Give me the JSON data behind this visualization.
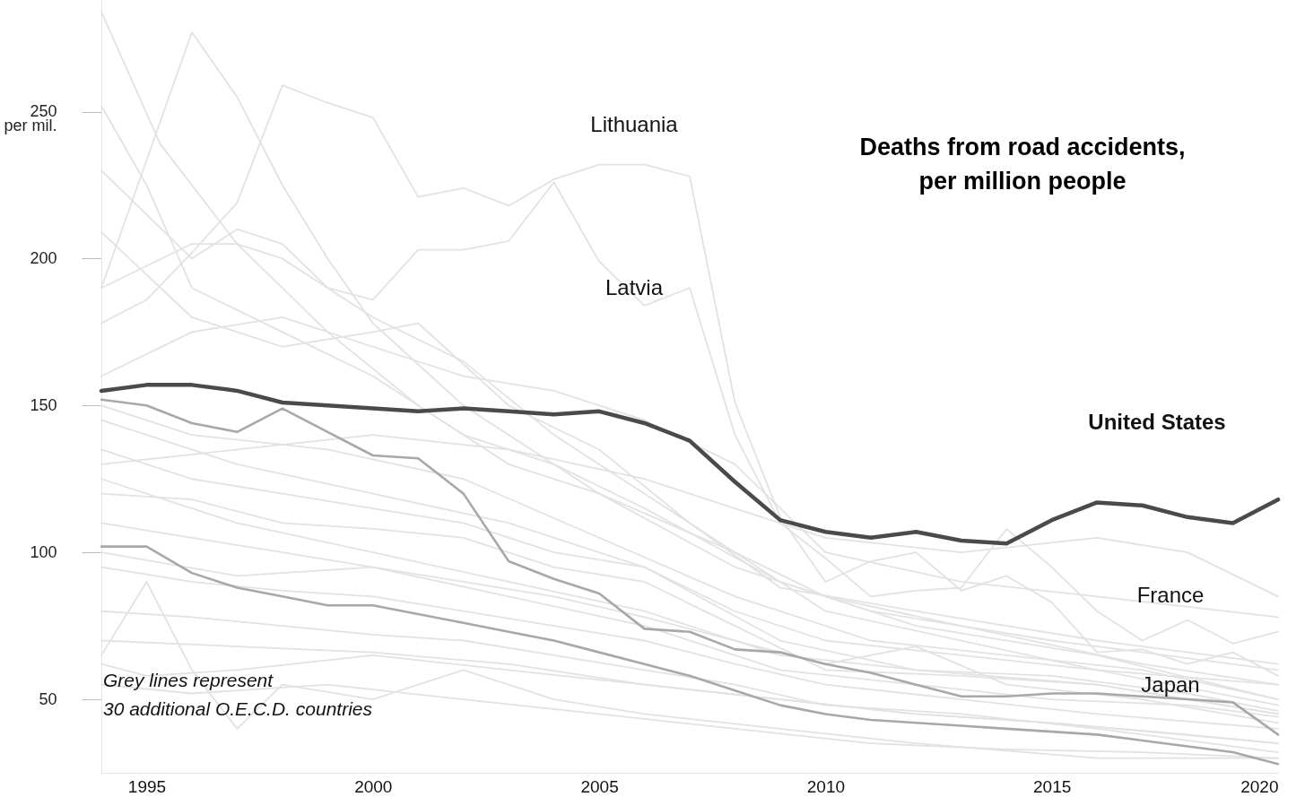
{
  "chart_data": {
    "type": "line",
    "title": "Deaths from road accidents,\nper million people",
    "xlim": [
      1994,
      2020
    ],
    "xticks": [
      1995,
      2000,
      2005,
      2010,
      2015,
      2020
    ],
    "ylim": [
      25,
      288
    ],
    "yticks": [
      50,
      100,
      150,
      200,
      {
        "value": 250,
        "label": "250\nper mil."
      }
    ],
    "annotations": [
      "Lithuania",
      "Latvia",
      "United States",
      "France",
      "Japan",
      "Grey lines represent\n30 additional O.E.C.D. countries"
    ],
    "series": [
      {
        "color": "#e2e2e2",
        "x": [
          1994,
          1995.3,
          1997,
          1999,
          2001,
          2003,
          2005,
          2008,
          2010,
          2013,
          2016,
          2020
        ],
        "values": [
          284,
          239,
          205,
          175,
          150,
          130,
          120,
          100,
          80,
          70,
          60,
          55
        ]
      },
      {
        "color": "#e2e2e2",
        "x": [
          1994,
          1996,
          1997,
          1998,
          1999,
          2000,
          2002,
          2005,
          2008,
          2011,
          2015,
          2020
        ],
        "values": [
          190,
          277,
          255,
          225,
          200,
          178,
          150,
          120,
          95,
          80,
          70,
          60
        ]
      },
      {
        "color": "#e2e2e2",
        "x": [
          1994,
          1995,
          1996,
          1998,
          2000,
          2002,
          2004,
          2006,
          2009,
          2012,
          2016,
          2020
        ],
        "values": [
          252,
          225,
          190,
          175,
          160,
          140,
          130,
          115,
          90,
          75,
          65,
          50
        ]
      },
      {
        "color": "#e2e2e2",
        "x": [
          1994,
          1996,
          1997,
          1998,
          2000,
          2002,
          2004,
          2006,
          2008,
          2010,
          2013,
          2017,
          2020
        ],
        "values": [
          190,
          205,
          205,
          200,
          180,
          165,
          140,
          120,
          100,
          85,
          75,
          62,
          55
        ]
      },
      {
        "color": "#e2e2e2",
        "x": [
          1994,
          1996,
          1998,
          2000,
          2001,
          2003,
          2005,
          2007,
          2009,
          2012,
          2016,
          2020
        ],
        "values": [
          209,
          180,
          170,
          175,
          178,
          150,
          135,
          110,
          88,
          80,
          70,
          62
        ]
      },
      {
        "color": "#e2e2e2",
        "x": [
          1994,
          1996,
          1998,
          2000,
          2002,
          2004,
          2006,
          2008,
          2010,
          2013,
          2016,
          2020
        ],
        "values": [
          160,
          175,
          180,
          170,
          160,
          155,
          145,
          130,
          100,
          90,
          85,
          78
        ]
      },
      {
        "color": "#e2e2e2",
        "x": [
          1994,
          1997,
          2000,
          2003,
          2006,
          2008,
          2010,
          2013,
          2016,
          2018,
          2020
        ],
        "values": [
          130,
          135,
          140,
          135,
          125,
          115,
          105,
          100,
          105,
          100,
          85
        ]
      },
      {
        "color": "#e2e2e2",
        "x": [
          1994,
          1996,
          1998,
          2000,
          2002,
          2004,
          2006,
          2008,
          2010,
          2013,
          2016,
          2020
        ],
        "values": [
          135,
          125,
          120,
          115,
          110,
          100,
          95,
          80,
          70,
          65,
          60,
          48
        ]
      },
      {
        "color": "#e2e2e2",
        "x": [
          1994,
          1996,
          1998,
          2000,
          2002,
          2004,
          2006,
          2008,
          2010,
          2013,
          2016,
          2020
        ],
        "values": [
          120,
          118,
          110,
          108,
          105,
          95,
          90,
          75,
          60,
          58,
          55,
          45
        ]
      },
      {
        "color": "#e2e2e2",
        "x": [
          1994,
          1996,
          1998,
          2000,
          2002,
          2004,
          2006,
          2008,
          2010,
          2012,
          2014,
          2017,
          2020
        ],
        "values": [
          110,
          105,
          100,
          95,
          90,
          85,
          78,
          70,
          62,
          68,
          55,
          50,
          42
        ]
      },
      {
        "color": "#e2e2e2",
        "x": [
          1994,
          1996,
          1998,
          2000,
          2002,
          2004,
          2006,
          2008,
          2010,
          2013,
          2016,
          2020
        ],
        "values": [
          95,
          90,
          87,
          85,
          80,
          75,
          70,
          62,
          55,
          50,
          45,
          40
        ]
      },
      {
        "color": "#e2e2e2",
        "x": [
          1994,
          1995,
          1997,
          2000,
          2003,
          2006,
          2009,
          2012,
          2015,
          2020
        ],
        "values": [
          62,
          58,
          60,
          65,
          60,
          55,
          50,
          45,
          42,
          35
        ]
      },
      {
        "color": "#e2e2e2",
        "x": [
          1994,
          1995,
          1996,
          1997,
          1998,
          2000,
          2002,
          2004,
          2006,
          2009,
          2012,
          2016,
          2020
        ],
        "values": [
          65,
          90,
          60,
          40,
          55,
          50,
          60,
          50,
          45,
          40,
          35,
          30,
          30
        ]
      },
      {
        "color": "#e2e2e2",
        "x": [
          1994,
          1996,
          1998,
          2000,
          2002,
          2004,
          2006,
          2008,
          2010,
          2013,
          2016,
          2020
        ],
        "values": [
          80,
          78,
          75,
          72,
          70,
          65,
          60,
          55,
          48,
          45,
          40,
          32
        ]
      },
      {
        "color": "#e2e2e2",
        "x": [
          1994,
          1997,
          2000,
          2003,
          2006,
          2009,
          2012,
          2015,
          2018,
          2020
        ],
        "values": [
          70,
          68,
          66,
          62,
          55,
          50,
          45,
          42,
          38,
          35
        ]
      },
      {
        "color": "#e2e2e2",
        "x": [
          1994,
          1996,
          1999,
          2002,
          2005,
          2008,
          2011,
          2014,
          2017,
          2020
        ],
        "values": [
          55,
          52,
          55,
          50,
          45,
          40,
          35,
          33,
          32,
          30
        ]
      },
      {
        "color": "#e2e2e2",
        "x": [
          1994,
          1997,
          2000,
          2003,
          2006,
          2009,
          2012,
          2016,
          2020
        ],
        "values": [
          145,
          130,
          120,
          110,
          95,
          70,
          60,
          55,
          45
        ]
      },
      {
        "color": "#e2e2e2",
        "x": [
          1994,
          1996,
          1999,
          2002,
          2005,
          2008,
          2011,
          2014,
          2017,
          2020
        ],
        "values": [
          150,
          140,
          135,
          125,
          105,
          85,
          70,
          65,
          60,
          50
        ]
      },
      {
        "color": "#e2e2e2",
        "x": [
          1994,
          1997,
          2000,
          2003,
          2006,
          2009,
          2012,
          2015,
          2018,
          2020
        ],
        "values": [
          100,
          92,
          95,
          85,
          75,
          60,
          55,
          50,
          48,
          44
        ]
      },
      {
        "color": "#e2e2e2",
        "x": [
          1994,
          1997,
          2000,
          2003,
          2006,
          2009,
          2012,
          2015,
          2018,
          2020
        ],
        "values": [
          125,
          110,
          100,
          90,
          80,
          65,
          60,
          58,
          52,
          46
        ]
      },
      {
        "color": "#e2e2e2",
        "x": [
          1994,
          1995,
          1996,
          1997,
          1998,
          1999,
          2000,
          2001,
          2002,
          2003,
          2004,
          2005,
          2006,
          2007,
          2008,
          2009,
          2010,
          2011,
          2012,
          2013,
          2014,
          2015,
          2016,
          2017,
          2018,
          2019,
          2020
        ],
        "values": [
          178,
          186,
          202,
          219,
          259,
          253,
          248,
          221,
          224,
          218,
          227,
          232,
          232,
          228,
          151,
          112,
          90,
          97,
          100,
          87,
          92,
          83,
          66,
          67,
          62,
          66,
          58
        ]
      },
      {
        "color": "#e2e2e2",
        "x": [
          1994,
          1995,
          1996,
          1997,
          1998,
          1999,
          2000,
          2001,
          2002,
          2003,
          2004,
          2005,
          2006,
          2007,
          2008,
          2009,
          2010,
          2011,
          2012,
          2013,
          2014,
          2015,
          2016,
          2017,
          2018,
          2019,
          2020
        ],
        "values": [
          230,
          215,
          200,
          210,
          205,
          190,
          186,
          203,
          203,
          206,
          226,
          199,
          184,
          190,
          140,
          110,
          98,
          85,
          87,
          88,
          108,
          95,
          80,
          70,
          77,
          69,
          73
        ]
      },
      {
        "color": "#a8a8a8",
        "x": [
          1994,
          1995,
          1996,
          1997,
          1998,
          1999,
          2000,
          2001,
          2002,
          2003,
          2004,
          2005,
          2006,
          2007,
          2008,
          2009,
          2010,
          2011,
          2012,
          2013,
          2014,
          2015,
          2016,
          2017,
          2018,
          2019,
          2020
        ],
        "values": [
          152,
          150,
          144,
          141,
          149,
          141,
          133,
          132,
          120,
          97,
          91,
          86,
          74,
          73,
          67,
          66,
          62,
          59,
          55,
          51,
          51,
          52,
          52,
          51,
          50,
          49,
          38
        ]
      },
      {
        "color": "#a8a8a8",
        "x": [
          1994,
          1995,
          1996,
          1997,
          1998,
          1999,
          2000,
          2001,
          2002,
          2003,
          2004,
          2005,
          2006,
          2007,
          2008,
          2009,
          2010,
          2011,
          2012,
          2013,
          2014,
          2015,
          2016,
          2017,
          2018,
          2019,
          2020
        ],
        "values": [
          102,
          102,
          93,
          88,
          85,
          82,
          82,
          79,
          76,
          73,
          70,
          66,
          62,
          58,
          53,
          48,
          45,
          43,
          42,
          41,
          40,
          39,
          38,
          36,
          34,
          32,
          28
        ]
      },
      {
        "color": "#4a4a4a",
        "x": [
          1994,
          1995,
          1996,
          1997,
          1998,
          1999,
          2000,
          2001,
          2002,
          2003,
          2004,
          2005,
          2006,
          2007,
          2008,
          2009,
          2010,
          2011,
          2012,
          2013,
          2014,
          2015,
          2016,
          2017,
          2018,
          2019,
          2020
        ],
        "values": [
          155,
          157,
          157,
          155,
          151,
          150,
          149,
          148,
          149,
          148,
          147,
          148,
          144,
          138,
          124,
          111,
          107,
          105,
          107,
          104,
          103,
          111,
          117,
          116,
          112,
          110,
          118
        ]
      }
    ]
  }
}
